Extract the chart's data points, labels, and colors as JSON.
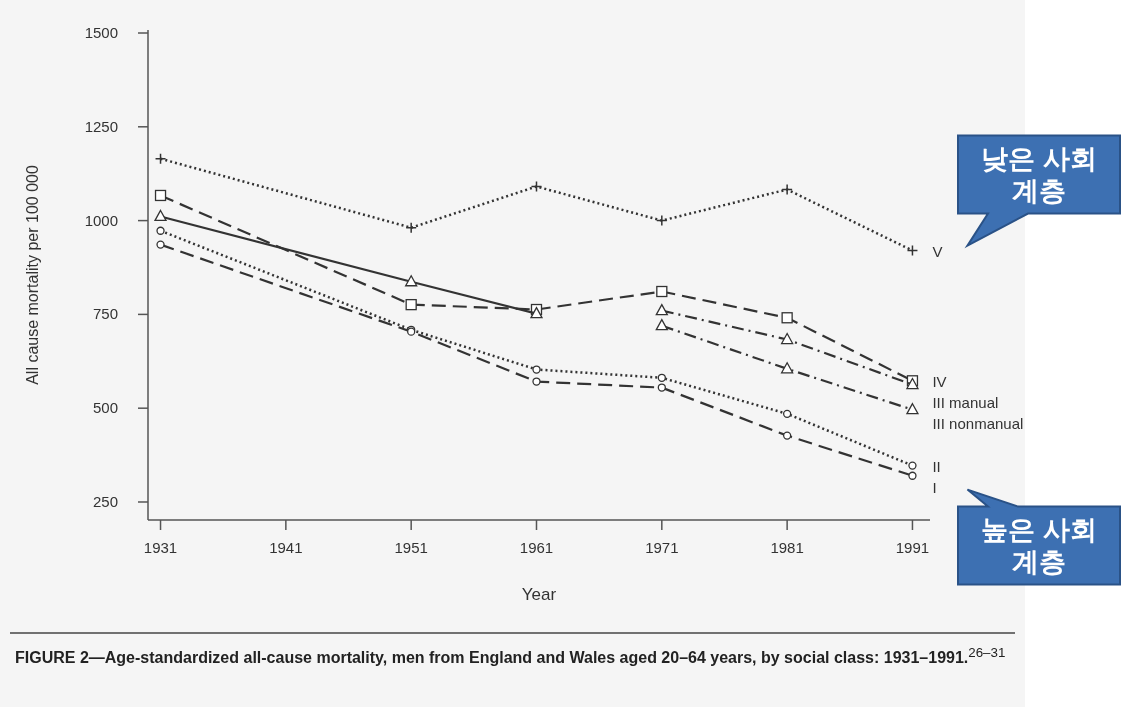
{
  "chart_data": {
    "type": "line",
    "xlabel": "Year",
    "ylabel": "All cause mortality per 100 000",
    "xlim": [
      1930,
      1992.4
    ],
    "ylim": [
      202,
      1508
    ],
    "xticks": [
      1931,
      1941,
      1951,
      1961,
      1971,
      1981,
      1991
    ],
    "yticks": [
      250,
      500,
      750,
      1000,
      1250,
      1500
    ],
    "grid": false,
    "legend": false,
    "series": [
      {
        "name": "V",
        "color": "#333333",
        "line_style": "dotted",
        "marker": "cross",
        "x": [
          1931,
          1951,
          1961,
          1971,
          1981,
          1991
        ],
        "values": [
          1165,
          981,
          1091,
          1000,
          1083,
          920
        ]
      },
      {
        "name": "IV",
        "color": "#333333",
        "line_style": "dashed",
        "marker": "square",
        "x": [
          1931,
          1951,
          1961,
          1971,
          1981,
          1991
        ],
        "values": [
          1067,
          776,
          763,
          811,
          741,
          573
        ]
      },
      {
        "color": "#333333",
        "line_style": "solid",
        "marker": "triangle",
        "x": [
          1931,
          1951,
          1961
        ],
        "values": [
          1011,
          837,
          752
        ]
      },
      {
        "name": "III manual",
        "color": "#333333",
        "line_style": "dashdot",
        "marker": "triangle",
        "x": [
          1971,
          1981,
          1991
        ],
        "values": [
          760,
          683,
          563
        ]
      },
      {
        "name": "III nonmanual",
        "color": "#333333",
        "line_style": "dashdot",
        "marker": "triangle",
        "x": [
          1971,
          1981,
          1991
        ],
        "values": [
          720,
          605,
          496
        ]
      },
      {
        "name": "II",
        "color": "#333333",
        "line_style": "dotted",
        "marker": "circle",
        "x": [
          1931,
          1951,
          1961,
          1971,
          1981,
          1991
        ],
        "values": [
          973,
          709,
          603,
          581,
          485,
          347
        ]
      },
      {
        "name": "I",
        "color": "#333333",
        "line_style": "dashed",
        "marker": "circle",
        "x": [
          1931,
          1951,
          1961,
          1971,
          1981,
          1991
        ],
        "values": [
          936,
          704,
          571,
          555,
          427,
          320
        ]
      }
    ],
    "annotations": [
      "낮은 사회 계층",
      "높은 사회 계층",
      "**FIGURE 2—Age-standardized all-cause mortality, men from England and Wales aged 20–64 years, by social class: 1931–1991.**$^{26–31}$"
    ]
  }
}
